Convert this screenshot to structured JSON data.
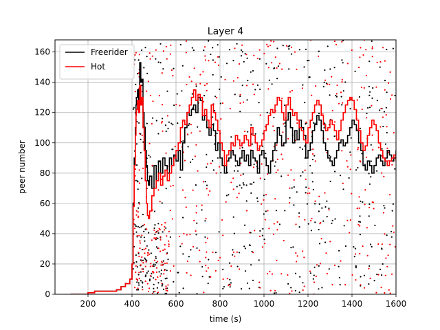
{
  "chart_data": {
    "type": "line",
    "title": "Layer 4",
    "xlabel": "time (s)",
    "ylabel": "peer number",
    "xlim": [
      50,
      1600
    ],
    "ylim": [
      0,
      168
    ],
    "xticks": [
      200,
      400,
      600,
      800,
      1000,
      1200,
      1400,
      1600
    ],
    "yticks": [
      0,
      20,
      40,
      60,
      80,
      100,
      120,
      140,
      160
    ],
    "grid": true,
    "legend_position": "upper-left",
    "series": [
      {
        "name": "Freerider",
        "color": "#000000",
        "style": "step-line",
        "x": [
          120,
          160,
          200,
          230,
          260,
          300,
          330,
          350,
          370,
          390,
          400,
          405,
          410,
          415,
          418,
          420,
          425,
          430,
          435,
          440,
          445,
          450,
          455,
          460,
          465,
          470,
          475,
          480,
          490,
          500,
          510,
          520,
          530,
          540,
          550,
          560,
          570,
          580,
          590,
          600,
          610,
          620,
          630,
          640,
          650,
          660,
          670,
          680,
          690,
          700,
          710,
          720,
          730,
          740,
          750,
          760,
          770,
          780,
          790,
          800,
          810,
          820,
          830,
          840,
          850,
          860,
          870,
          880,
          890,
          900,
          910,
          920,
          930,
          940,
          950,
          960,
          970,
          980,
          990,
          1000,
          1010,
          1020,
          1030,
          1040,
          1050,
          1060,
          1070,
          1080,
          1090,
          1100,
          1110,
          1120,
          1130,
          1140,
          1150,
          1160,
          1170,
          1180,
          1190,
          1200,
          1210,
          1220,
          1230,
          1240,
          1250,
          1260,
          1270,
          1280,
          1290,
          1300,
          1310,
          1320,
          1330,
          1340,
          1350,
          1360,
          1370,
          1380,
          1390,
          1400,
          1410,
          1420,
          1430,
          1440,
          1450,
          1460,
          1470,
          1480,
          1490,
          1500,
          1510,
          1520,
          1530,
          1540,
          1550,
          1560,
          1570,
          1580,
          1590,
          1600
        ],
        "y": [
          0,
          0,
          1,
          2,
          2,
          2,
          3,
          5,
          7,
          10,
          20,
          60,
          90,
          110,
          125,
          130,
          135,
          120,
          153,
          140,
          142,
          120,
          110,
          95,
          85,
          75,
          72,
          78,
          70,
          85,
          75,
          88,
          80,
          90,
          85,
          80,
          90,
          85,
          92,
          88,
          95,
          82,
          100,
          110,
          120,
          118,
          122,
          125,
          120,
          130,
          128,
          115,
          118,
          110,
          105,
          112,
          108,
          95,
          100,
          90,
          85,
          80,
          88,
          90,
          95,
          92,
          88,
          85,
          90,
          95,
          88,
          92,
          85,
          95,
          90,
          88,
          80,
          92,
          95,
          90,
          85,
          80,
          88,
          95,
          100,
          110,
          105,
          98,
          100,
          115,
          120,
          110,
          100,
          108,
          102,
          115,
          110,
          105,
          90,
          95,
          100,
          108,
          112,
          118,
          115,
          108,
          100,
          95,
          90,
          88,
          85,
          90,
          95,
          100,
          102,
          98,
          100,
          105,
          110,
          115,
          112,
          108,
          100,
          95,
          85,
          82,
          88,
          85,
          80,
          85,
          90,
          92,
          88,
          85,
          90,
          95,
          92,
          88,
          90,
          95
        ],
        "note": ""
      },
      {
        "name": "Hot",
        "color": "#ff0000",
        "style": "step-line",
        "x": [
          120,
          160,
          200,
          230,
          260,
          300,
          330,
          350,
          370,
          390,
          400,
          405,
          410,
          415,
          418,
          420,
          425,
          430,
          435,
          440,
          445,
          450,
          455,
          460,
          465,
          470,
          475,
          480,
          490,
          500,
          510,
          520,
          530,
          540,
          550,
          560,
          570,
          580,
          590,
          600,
          610,
          620,
          630,
          640,
          650,
          660,
          670,
          680,
          690,
          700,
          710,
          720,
          730,
          740,
          750,
          760,
          770,
          780,
          790,
          800,
          810,
          820,
          830,
          840,
          850,
          860,
          870,
          880,
          890,
          900,
          910,
          920,
          930,
          940,
          950,
          960,
          970,
          980,
          990,
          1000,
          1010,
          1020,
          1030,
          1040,
          1050,
          1060,
          1070,
          1080,
          1090,
          1100,
          1110,
          1120,
          1130,
          1140,
          1150,
          1160,
          1170,
          1180,
          1190,
          1200,
          1210,
          1220,
          1230,
          1240,
          1250,
          1260,
          1270,
          1280,
          1290,
          1300,
          1310,
          1320,
          1330,
          1340,
          1350,
          1360,
          1370,
          1380,
          1390,
          1400,
          1410,
          1420,
          1430,
          1440,
          1450,
          1460,
          1470,
          1480,
          1490,
          1500,
          1510,
          1520,
          1530,
          1540,
          1550,
          1560,
          1570,
          1580,
          1590,
          1600
        ],
        "y": [
          0,
          0,
          1,
          2,
          2,
          2,
          3,
          5,
          7,
          10,
          20,
          58,
          85,
          105,
          118,
          122,
          128,
          120,
          138,
          125,
          130,
          110,
          95,
          75,
          60,
          52,
          50,
          55,
          65,
          70,
          75,
          80,
          72,
          78,
          82,
          75,
          80,
          85,
          90,
          95,
          100,
          110,
          115,
          112,
          120,
          125,
          130,
          135,
          128,
          132,
          130,
          118,
          122,
          115,
          110,
          125,
          120,
          115,
          108,
          100,
          95,
          85,
          92,
          95,
          100,
          98,
          105,
          102,
          98,
          100,
          105,
          102,
          98,
          110,
          105,
          100,
          95,
          98,
          102,
          108,
          112,
          118,
          122,
          120,
          125,
          130,
          128,
          120,
          115,
          125,
          130,
          122,
          118,
          120,
          115,
          110,
          108,
          102,
          100,
          110,
          115,
          120,
          125,
          128,
          125,
          118,
          112,
          108,
          110,
          115,
          112,
          108,
          102,
          108,
          115,
          120,
          125,
          128,
          130,
          128,
          122,
          115,
          108,
          100,
          95,
          98,
          105,
          110,
          115,
          112,
          108,
          100,
          95,
          90,
          88,
          85,
          88,
          90,
          92,
          88
        ],
        "note": ""
      }
    ],
    "scatter_overlays": [
      {
        "name": "Freerider",
        "color": "#000000",
        "points": "approximately 600 scattered black dots distributed across x 400–1600, y 0–168 (individual peer markers); dense cluster near x 420–560, y 0–40; points rendered procedurally from a fixed seed"
      },
      {
        "name": "Hot",
        "color": "#ff0000",
        "points": "approximately 600 scattered red dots distributed across x 400–1600, y 0–168; similar density to black; points rendered procedurally from a fixed seed"
      }
    ]
  }
}
